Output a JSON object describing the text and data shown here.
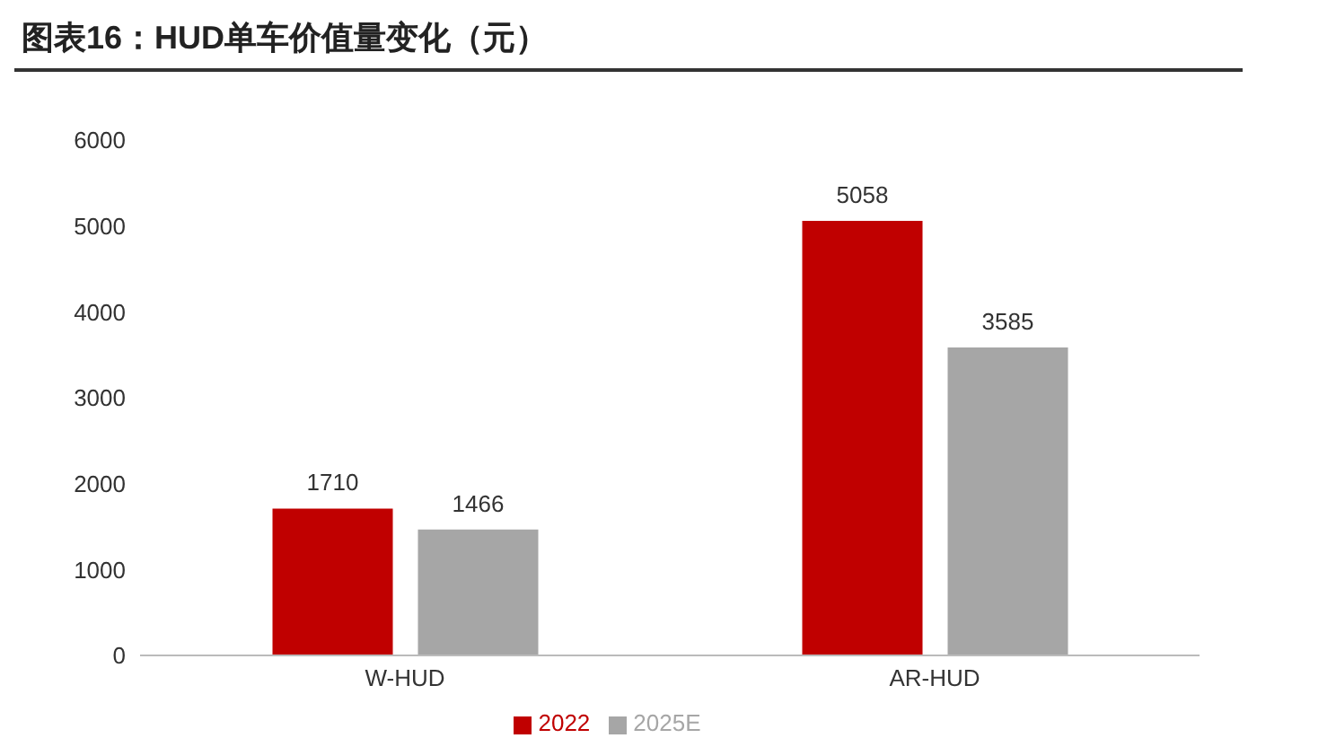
{
  "chart_data": {
    "type": "bar",
    "title": "图表16：HUD单车价值量变化（元）",
    "categories": [
      "W-HUD",
      "AR-HUD"
    ],
    "series": [
      {
        "name": "2022",
        "color": "#c00000",
        "values": [
          1710,
          5058
        ]
      },
      {
        "name": "2025E",
        "color": "#a6a6a6",
        "values": [
          1466,
          3585
        ]
      }
    ],
    "ylim": [
      0,
      6000
    ],
    "yticks": [
      0,
      1000,
      2000,
      3000,
      4000,
      5000,
      6000
    ],
    "grid": false,
    "legend": "bottom",
    "data_labels": true
  }
}
